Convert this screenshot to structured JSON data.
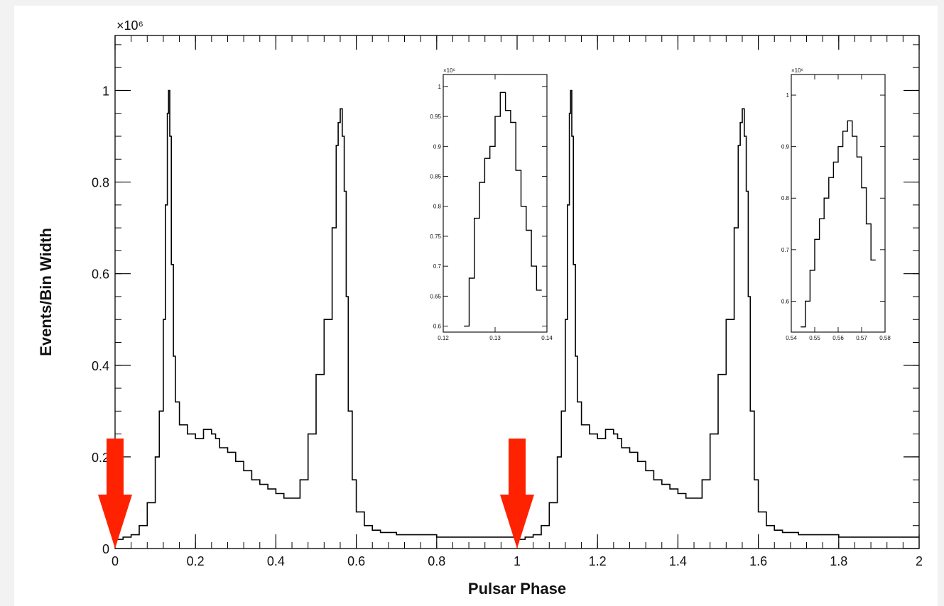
{
  "chart_data": [
    {
      "id": "main",
      "type": "line",
      "style": "step-histogram",
      "xlabel": "Pulsar Phase",
      "ylabel": "Events/Bin Width",
      "y_exponent_label": "×10⁶",
      "xlim": [
        0,
        2
      ],
      "ylim": [
        0,
        1.12
      ],
      "x_ticks": [
        0,
        0.2,
        0.4,
        0.6,
        0.8,
        1,
        1.2,
        1.4,
        1.6,
        1.8,
        2
      ],
      "x_tick_labels": [
        "0",
        "0.2",
        "0.4",
        "0.6",
        "0.8",
        "1",
        "1.2",
        "1.4",
        "1.6",
        "1.8",
        "2"
      ],
      "y_ticks": [
        0,
        0.2,
        0.4,
        0.6,
        0.8,
        1
      ],
      "y_tick_labels": [
        "0",
        "0.2",
        "0.4",
        "0.6",
        "0.8",
        "1"
      ],
      "grid": false,
      "series": [
        {
          "line_color": "#000000",
          "x": [
            0,
            0.02,
            0.04,
            0.06,
            0.08,
            0.1,
            0.11,
            0.12,
            0.125,
            0.13,
            0.133,
            0.136,
            0.14,
            0.145,
            0.15,
            0.16,
            0.18,
            0.2,
            0.22,
            0.24,
            0.25,
            0.26,
            0.28,
            0.3,
            0.32,
            0.34,
            0.36,
            0.38,
            0.4,
            0.42,
            0.44,
            0.46,
            0.48,
            0.5,
            0.52,
            0.54,
            0.55,
            0.555,
            0.56,
            0.565,
            0.57,
            0.575,
            0.58,
            0.59,
            0.6,
            0.62,
            0.64,
            0.66,
            0.7,
            0.8,
            0.9,
            1.0
          ],
          "y": [
            0.02,
            0.025,
            0.03,
            0.05,
            0.1,
            0.2,
            0.3,
            0.5,
            0.75,
            0.95,
            1.0,
            0.9,
            0.62,
            0.42,
            0.32,
            0.27,
            0.25,
            0.24,
            0.26,
            0.25,
            0.24,
            0.22,
            0.21,
            0.19,
            0.17,
            0.15,
            0.14,
            0.13,
            0.12,
            0.11,
            0.11,
            0.15,
            0.25,
            0.38,
            0.5,
            0.7,
            0.88,
            0.93,
            0.96,
            0.9,
            0.78,
            0.55,
            0.3,
            0.15,
            0.08,
            0.05,
            0.04,
            0.035,
            0.03,
            0.025,
            0.025,
            0.025
          ]
        }
      ],
      "annotations": [
        {
          "type": "arrow",
          "color": "#ff2200",
          "x": 0,
          "y": 0
        },
        {
          "type": "arrow",
          "color": "#ff2200",
          "x": 1,
          "y": 0
        }
      ]
    },
    {
      "id": "inset-1",
      "type": "line",
      "style": "step-histogram",
      "y_exponent_label": "×10⁶",
      "xlim": [
        0.12,
        0.14
      ],
      "ylim": [
        0.59,
        1.02
      ],
      "x_ticks": [
        0.12,
        0.13,
        0.14
      ],
      "x_tick_labels": [
        "0.12",
        "0.13",
        "0.14"
      ],
      "y_ticks": [
        0.6,
        0.65,
        0.7,
        0.75,
        0.8,
        0.85,
        0.9,
        0.95,
        1
      ],
      "y_tick_labels": [
        "0.6",
        "0.65",
        "0.7",
        "0.75",
        "0.8",
        "0.85",
        "0.9",
        "0.95",
        "1"
      ],
      "series": [
        {
          "line_color": "#000000",
          "x": [
            0.124,
            0.125,
            0.126,
            0.127,
            0.128,
            0.129,
            0.13,
            0.131,
            0.132,
            0.133,
            0.134,
            0.135,
            0.136,
            0.137,
            0.138,
            0.139
          ],
          "y": [
            0.6,
            0.68,
            0.78,
            0.84,
            0.88,
            0.9,
            0.95,
            0.99,
            0.96,
            0.94,
            0.86,
            0.8,
            0.76,
            0.7,
            0.66,
            0.63
          ]
        }
      ]
    },
    {
      "id": "inset-2",
      "type": "line",
      "style": "step-histogram",
      "y_exponent_label": "×10⁶",
      "xlim": [
        0.54,
        0.58
      ],
      "ylim": [
        0.54,
        1.04
      ],
      "x_ticks": [
        0.54,
        0.55,
        0.56,
        0.57,
        0.58
      ],
      "x_tick_labels": [
        "0.54",
        "0.55",
        "0.56",
        "0.57",
        "0.58"
      ],
      "y_ticks": [
        0.6,
        0.7,
        0.8,
        0.9,
        1
      ],
      "y_tick_labels": [
        "0.6",
        "0.7",
        "0.8",
        "0.9",
        "1"
      ],
      "series": [
        {
          "line_color": "#000000",
          "x": [
            0.544,
            0.546,
            0.548,
            0.55,
            0.552,
            0.554,
            0.556,
            0.558,
            0.56,
            0.562,
            0.564,
            0.566,
            0.568,
            0.57,
            0.572,
            0.574,
            0.576
          ],
          "y": [
            0.55,
            0.6,
            0.66,
            0.72,
            0.76,
            0.8,
            0.84,
            0.87,
            0.9,
            0.93,
            0.95,
            0.92,
            0.88,
            0.82,
            0.75,
            0.68,
            0.56
          ]
        }
      ]
    }
  ]
}
